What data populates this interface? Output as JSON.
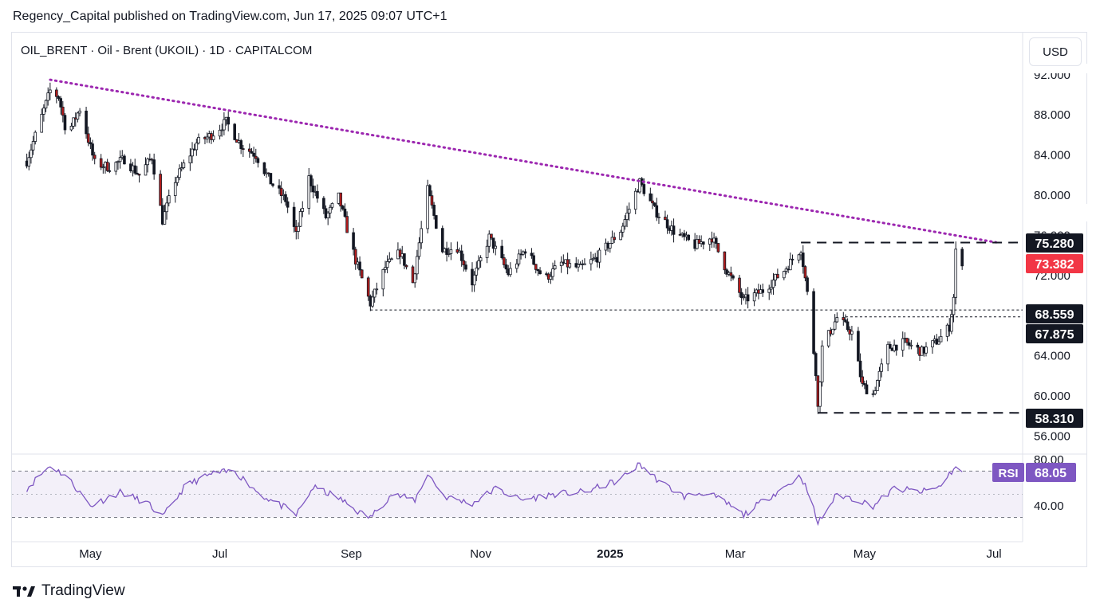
{
  "header": {
    "published": "Regency_Capital published on TradingView.com, Jun 17, 2025 09:07 UTC+1",
    "symbol": "OIL_BRENT · Oil - Brent (UKOIL) · 1D · CAPITALCOM",
    "currency": "USD"
  },
  "footer": {
    "brand": "TradingView",
    "logo_icon": "tradingview-logo-icon"
  },
  "chart_data": {
    "type": "candlestick",
    "price_axis": {
      "ticks": [
        "92.000",
        "88.000",
        "84.000",
        "80.000",
        "76.000",
        "72.000",
        "64.000",
        "60.000",
        "56.000"
      ],
      "range": [
        55,
        92.3
      ]
    },
    "time_axis": {
      "labels": [
        "May",
        "Jul",
        "Sep",
        "Nov",
        "2025",
        "Mar",
        "May",
        "Jul"
      ]
    },
    "ohlc_path": [
      [
        "2024-04-01",
        83.4
      ],
      [
        "2024-04-12",
        90.4
      ],
      [
        "2024-04-16",
        89.8
      ],
      [
        "2024-04-20",
        86.0
      ],
      [
        "2024-04-26",
        88.6
      ],
      [
        "2024-05-03",
        83.2
      ],
      [
        "2024-05-10",
        82.8
      ],
      [
        "2024-05-17",
        83.6
      ],
      [
        "2024-05-24",
        82.0
      ],
      [
        "2024-05-30",
        83.8
      ],
      [
        "2024-06-04",
        77.5
      ],
      [
        "2024-06-10",
        81.5
      ],
      [
        "2024-06-20",
        85.2
      ],
      [
        "2024-06-27",
        86.0
      ],
      [
        "2024-07-04",
        87.3
      ],
      [
        "2024-07-11",
        85.0
      ],
      [
        "2024-07-18",
        84.0
      ],
      [
        "2024-07-25",
        81.3
      ],
      [
        "2024-08-01",
        79.5
      ],
      [
        "2024-08-06",
        76.0
      ],
      [
        "2024-08-12",
        81.7
      ],
      [
        "2024-08-20",
        77.8
      ],
      [
        "2024-08-26",
        79.8
      ],
      [
        "2024-09-03",
        73.5
      ],
      [
        "2024-09-10",
        69.2
      ],
      [
        "2024-09-17",
        72.8
      ],
      [
        "2024-09-24",
        74.3
      ],
      [
        "2024-09-30",
        71.3
      ],
      [
        "2024-10-07",
        80.5
      ],
      [
        "2024-10-14",
        74.5
      ],
      [
        "2024-10-21",
        74.8
      ],
      [
        "2024-10-28",
        71.3
      ],
      [
        "2024-11-05",
        75.8
      ],
      [
        "2024-11-14",
        72.2
      ],
      [
        "2024-11-22",
        74.6
      ],
      [
        "2024-12-01",
        71.6
      ],
      [
        "2024-12-09",
        73.2
      ],
      [
        "2024-12-18",
        72.7
      ],
      [
        "2024-12-26",
        73.8
      ],
      [
        "2025-01-06",
        76.5
      ],
      [
        "2025-01-15",
        81.3
      ],
      [
        "2025-01-22",
        78.5
      ],
      [
        "2025-02-01",
        76.2
      ],
      [
        "2025-02-10",
        75.0
      ],
      [
        "2025-02-18",
        75.8
      ],
      [
        "2025-02-25",
        72.5
      ],
      [
        "2025-03-05",
        69.5
      ],
      [
        "2025-03-14",
        70.5
      ],
      [
        "2025-03-24",
        72.5
      ],
      [
        "2025-04-01",
        74.7
      ],
      [
        "2025-04-04",
        70.2
      ],
      [
        "2025-04-08",
        62.5
      ],
      [
        "2025-04-09",
        58.8
      ],
      [
        "2025-04-11",
        64.8
      ],
      [
        "2025-04-18",
        67.8
      ],
      [
        "2025-04-25",
        66.3
      ],
      [
        "2025-04-30",
        61.0
      ],
      [
        "2025-05-05",
        60.2
      ],
      [
        "2025-05-12",
        64.8
      ],
      [
        "2025-05-20",
        65.3
      ],
      [
        "2025-05-28",
        64.4
      ],
      [
        "2025-06-05",
        65.6
      ],
      [
        "2025-06-10",
        66.9
      ],
      [
        "2025-06-12",
        69.8
      ],
      [
        "2025-06-13",
        74.3
      ],
      [
        "2025-06-16",
        73.4
      ]
    ],
    "trendline": {
      "from": [
        "2024-04-12",
        91.5
      ],
      "to": [
        "2025-07-02",
        75.3
      ],
      "style": "dotted",
      "color": "#9c27b0"
    },
    "horizontal_levels": [
      {
        "price": 75.28,
        "label": "75.280",
        "style": "dashed",
        "from": "2025-04-01"
      },
      {
        "price": 68.559,
        "label": "68.559",
        "style": "dotted",
        "from": "2024-09-10"
      },
      {
        "price": 67.875,
        "label": "67.875",
        "style": "dotted",
        "from": "2025-04-22"
      },
      {
        "price": 58.31,
        "label": "58.310",
        "style": "dashed",
        "from": "2025-04-09"
      }
    ],
    "last_price": {
      "label": "73.382",
      "color": "#f23645"
    },
    "rsi": {
      "label": "RSI",
      "value": "68.05",
      "ticks": [
        "80.00",
        "40.00"
      ],
      "range": [
        20,
        82
      ],
      "bands": [
        70,
        30
      ],
      "color": "#7e57c2",
      "path": [
        [
          "2024-04-01",
          55
        ],
        [
          "2024-04-12",
          75
        ],
        [
          "2024-04-20",
          65
        ],
        [
          "2024-05-01",
          40
        ],
        [
          "2024-05-15",
          52
        ],
        [
          "2024-05-28",
          42
        ],
        [
          "2024-06-04",
          30
        ],
        [
          "2024-06-15",
          58
        ],
        [
          "2024-06-28",
          68
        ],
        [
          "2024-07-08",
          70
        ],
        [
          "2024-07-20",
          50
        ],
        [
          "2024-08-01",
          38
        ],
        [
          "2024-08-06",
          32
        ],
        [
          "2024-08-14",
          56
        ],
        [
          "2024-08-25",
          48
        ],
        [
          "2024-09-05",
          34
        ],
        [
          "2024-09-10",
          30
        ],
        [
          "2024-09-20",
          50
        ],
        [
          "2024-10-01",
          45
        ],
        [
          "2024-10-07",
          68
        ],
        [
          "2024-10-15",
          48
        ],
        [
          "2024-10-28",
          42
        ],
        [
          "2024-11-08",
          55
        ],
        [
          "2024-11-20",
          45
        ],
        [
          "2024-12-05",
          50
        ],
        [
          "2024-12-20",
          52
        ],
        [
          "2025-01-05",
          62
        ],
        [
          "2025-01-15",
          76
        ],
        [
          "2025-01-25",
          60
        ],
        [
          "2025-02-05",
          48
        ],
        [
          "2025-02-15",
          52
        ],
        [
          "2025-02-25",
          42
        ],
        [
          "2025-03-05",
          32
        ],
        [
          "2025-03-14",
          44
        ],
        [
          "2025-03-24",
          56
        ],
        [
          "2025-04-01",
          66
        ],
        [
          "2025-04-05",
          48
        ],
        [
          "2025-04-09",
          25
        ],
        [
          "2025-04-18",
          50
        ],
        [
          "2025-04-28",
          45
        ],
        [
          "2025-05-05",
          40
        ],
        [
          "2025-05-15",
          55
        ],
        [
          "2025-05-28",
          52
        ],
        [
          "2025-06-05",
          56
        ],
        [
          "2025-06-12",
          72
        ],
        [
          "2025-06-14",
          74
        ],
        [
          "2025-06-16",
          68
        ]
      ]
    }
  }
}
